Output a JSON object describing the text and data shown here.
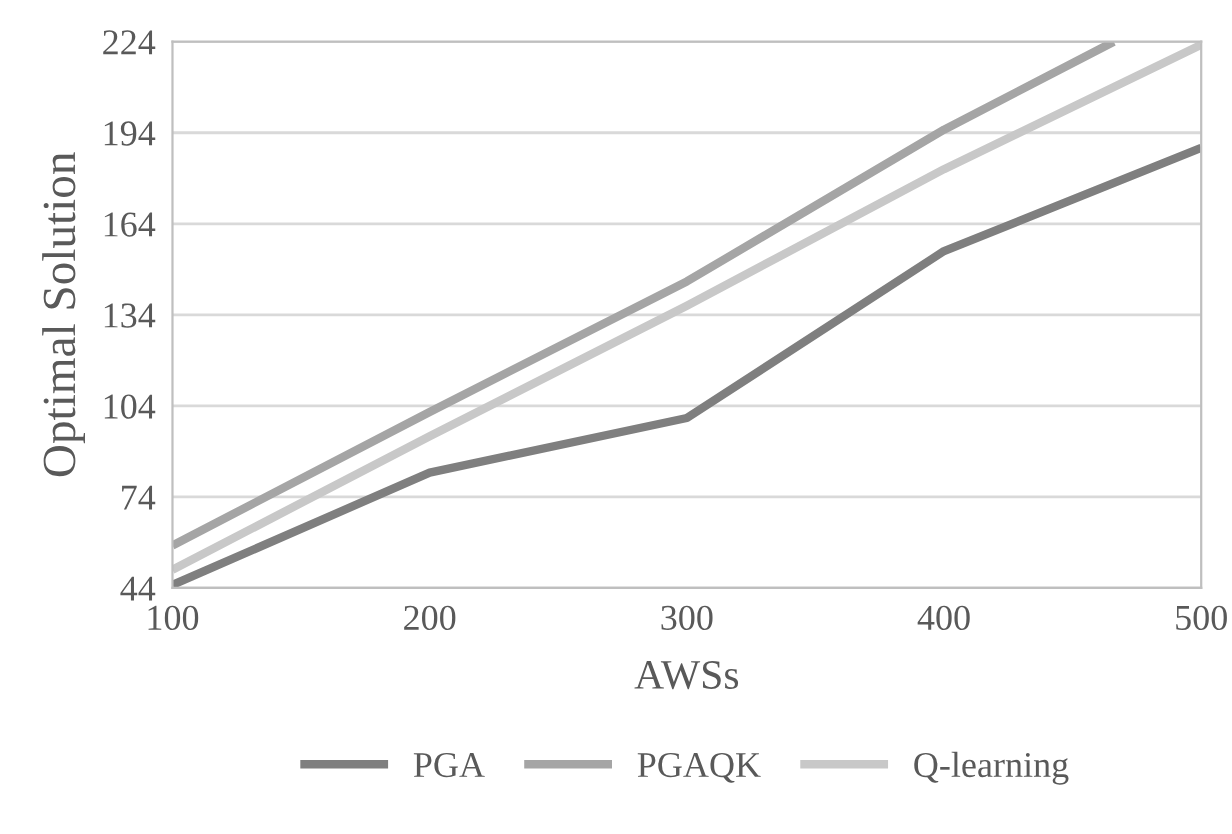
{
  "chart_data": {
    "type": "line",
    "xlabel": "AWSs",
    "ylabel": "Optimal Solution",
    "xlim": [
      100,
      500
    ],
    "xticks": [
      100,
      200,
      300,
      400,
      500
    ],
    "ylim": [
      44,
      224
    ],
    "yticks": [
      44,
      74,
      104,
      134,
      164,
      194,
      224
    ],
    "grid": "y",
    "legend": "bottom",
    "marker": "none",
    "line_style": "solid",
    "series": [
      {
        "name": "PGA",
        "color": "#7f7f7f",
        "x": [
          100,
          200,
          300,
          400,
          500
        ],
        "values": [
          45,
          82,
          100,
          155,
          189
        ]
      },
      {
        "name": "PGAQK",
        "color": "#a5a5a5",
        "x": [
          100,
          200,
          300,
          400,
          466
        ],
        "values": [
          58,
          102,
          145,
          195,
          224
        ]
      },
      {
        "name": "Q-learning",
        "color": "#c8c8c8",
        "x": [
          100,
          200,
          300,
          400,
          500
        ],
        "values": [
          50,
          94,
          137,
          182,
          223
        ]
      }
    ]
  }
}
